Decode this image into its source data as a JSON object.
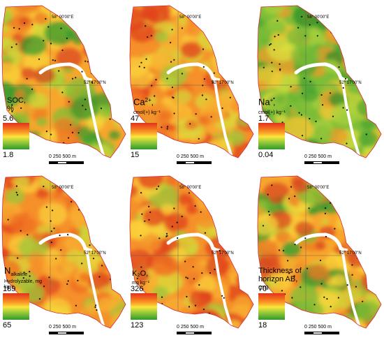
{
  "coords": {
    "lon": "58° 00'00\"E",
    "lat": "52° 17'00\"N"
  },
  "scale": {
    "label": "0   250  500 m"
  },
  "panels": [
    {
      "id": "soc",
      "title": "SOC,",
      "unit": "%",
      "max": "5.6",
      "min": "1.8",
      "tone": "mixed"
    },
    {
      "id": "ca",
      "title": "Ca",
      "sup": "2+",
      "title_suffix": ",",
      "unit": "cmol(+) kg⁻¹",
      "max": "47",
      "min": "15",
      "tone": "orange"
    },
    {
      "id": "na",
      "title": "Na",
      "sup": "+",
      "title_suffix": ",",
      "unit": "cmol(+) kg⁻¹",
      "max": "1.7",
      "min": "0.04",
      "tone": "green"
    },
    {
      "id": "n",
      "title": "N",
      "sub": "alkaline",
      "unit": "Hydrolyzable, mg kg⁻¹",
      "max": "189",
      "min": "65",
      "tone": "orange"
    },
    {
      "id": "k",
      "title": "K₂O,",
      "unit": "mg kg⁻¹",
      "max": "326",
      "min": "123",
      "tone": "orange"
    },
    {
      "id": "ab",
      "title": "Thickness of",
      "title2": "horizon AB,",
      "unit": "cm",
      "max": "70",
      "min": "18",
      "tone": "mixed"
    }
  ]
}
